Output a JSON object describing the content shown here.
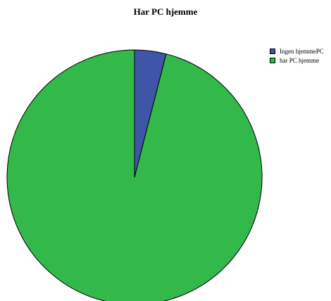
{
  "chart_data": {
    "type": "pie",
    "title": "Har PC hjemme",
    "categories": [
      "Ingen hjemmePC",
      "har PC hjemme"
    ],
    "values": [
      4,
      96
    ],
    "colors": [
      "#3f55a8",
      "#33b84a"
    ],
    "legend_position": "top-right",
    "start_angle": "12 o'clock",
    "direction": "clockwise"
  }
}
